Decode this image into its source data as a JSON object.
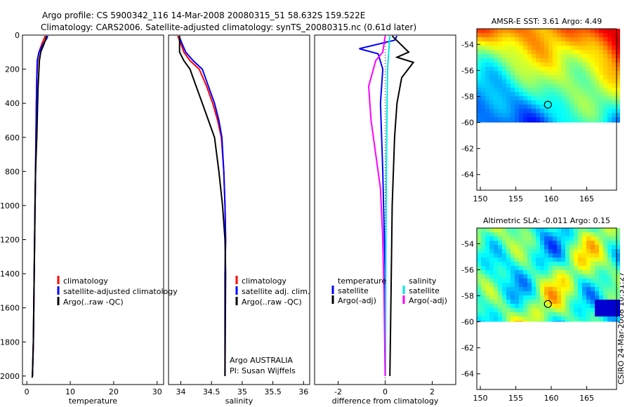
{
  "header": {
    "line1": "Argo profile: CS 5900342_116 14-Mar-2008 20080315_51 58.632S 159.522E",
    "line2": "Climatology: CARS2006. Satellite-adjusted climatology: synTS_20080315.nc (0.61d later)"
  },
  "footer": {
    "credit": "CSIRO 24-Mar-2008 10:31:27"
  },
  "colors": {
    "climatology": "#ff0000",
    "satellite": "#0000ff",
    "argo": "#000000",
    "sat_salinity": "#00e5e5",
    "argo_salinity": "#ff00ff"
  },
  "chart_data": [
    {
      "id": "temperature",
      "type": "line",
      "xlabel": "temperature",
      "ylabel": "",
      "xlim": [
        -1,
        31.5
      ],
      "ylim": [
        2050,
        0
      ],
      "xticks": [
        0,
        10,
        20,
        30
      ],
      "yticks": [
        0,
        200,
        400,
        600,
        800,
        1000,
        1200,
        1400,
        1600,
        1800,
        2000
      ],
      "legend": [
        "climatology",
        "satellite-adjusted climatology",
        "Argo(..raw -QC)"
      ],
      "series": [
        {
          "name": "climatology",
          "color": "#ff0000",
          "x": [
            4.2,
            4.0,
            3.5,
            2.8,
            2.5,
            2.3,
            2.2,
            2.1,
            2.0,
            1.9,
            1.7,
            1.5,
            1.3
          ],
          "y": [
            5,
            20,
            50,
            100,
            150,
            250,
            400,
            600,
            800,
            1000,
            1400,
            1800,
            2000
          ]
        },
        {
          "name": "satellite-adjusted climatology",
          "color": "#0000ff",
          "x": [
            4.8,
            4.6,
            3.8,
            2.8,
            2.4,
            2.3,
            2.2,
            2.1,
            2.0,
            1.9,
            1.7,
            1.5,
            1.3
          ],
          "y": [
            5,
            20,
            50,
            100,
            150,
            250,
            400,
            600,
            800,
            1000,
            1400,
            1800,
            2000
          ]
        },
        {
          "name": "Argo(..raw -QC)",
          "color": "#000000",
          "x": [
            4.5,
            4.4,
            4.0,
            3.2,
            2.9,
            2.8,
            2.6,
            2.5,
            2.3,
            2.0,
            1.9,
            1.7,
            1.5,
            1.3,
            1.2
          ],
          "y": [
            5,
            20,
            50,
            100,
            150,
            200,
            300,
            400,
            600,
            800,
            1000,
            1400,
            1800,
            2000,
            2010
          ]
        }
      ]
    },
    {
      "id": "salinity",
      "type": "line",
      "xlabel": "salinity",
      "ylabel": "",
      "xlim": [
        33.8,
        36.1
      ],
      "ylim": [
        2050,
        0
      ],
      "xticks": [
        34,
        34.5,
        35,
        35.5,
        36
      ],
      "xtick_labels": [
        "34",
        "34.5",
        "35",
        "35.5",
        "36"
      ],
      "yticks": [
        0,
        200,
        400,
        600,
        800,
        1000,
        1200,
        1400,
        1600,
        1800,
        2000
      ],
      "legend": [
        "climatology",
        "satellite adj. clim.",
        "Argo(..raw -QC)"
      ],
      "annotation": [
        "Argo AUSTRALIA",
        "PI: Susan Wijffels"
      ],
      "series": [
        {
          "name": "climatology",
          "color": "#ff0000",
          "x": [
            33.95,
            34.0,
            34.05,
            34.15,
            34.3,
            34.42,
            34.52,
            34.6,
            34.66,
            34.7,
            34.72,
            34.73,
            34.72,
            34.72,
            34.72
          ],
          "y": [
            5,
            50,
            100,
            150,
            200,
            300,
            400,
            500,
            600,
            800,
            1000,
            1200,
            1400,
            1800,
            2000
          ]
        },
        {
          "name": "satellite adj. clim.",
          "color": "#0000ff",
          "x": [
            33.97,
            34.02,
            34.08,
            34.2,
            34.35,
            34.45,
            34.55,
            34.62,
            34.67,
            34.7,
            34.72,
            34.73,
            34.72,
            34.72,
            34.72
          ],
          "y": [
            5,
            50,
            100,
            150,
            200,
            300,
            400,
            500,
            600,
            800,
            1000,
            1200,
            1400,
            1800,
            2000
          ]
        },
        {
          "name": "Argo(..raw -QC)",
          "color": "#000000",
          "x": [
            33.98,
            33.98,
            34.05,
            34.15,
            34.25,
            34.35,
            34.45,
            34.55,
            34.62,
            34.68,
            34.72,
            34.73,
            34.72
          ],
          "y": [
            5,
            100,
            150,
            200,
            300,
            400,
            500,
            600,
            800,
            1000,
            1200,
            1400,
            2000
          ]
        }
      ]
    },
    {
      "id": "difference",
      "type": "line",
      "xlabel": "difference from climatology",
      "ylabel": "",
      "xlim": [
        -3,
        3
      ],
      "ylim": [
        2050,
        0
      ],
      "xticks": [
        -2,
        0,
        2
      ],
      "yticks": [
        0,
        200,
        400,
        600,
        800,
        1000,
        1200,
        1400,
        1600,
        1800,
        2000
      ],
      "legend_left": [
        "temperature",
        "satellite",
        "Argo(-adj)"
      ],
      "legend_right": [
        "salinity",
        "satellite",
        "Argo(-adj)"
      ],
      "series": [
        {
          "name": "temperature satellite",
          "color": "#0000ff",
          "x": [
            0.5,
            0.4,
            -1.1,
            -0.3,
            -0.1,
            -0.2,
            -0.1,
            0,
            0
          ],
          "y": [
            5,
            30,
            80,
            110,
            200,
            400,
            800,
            1400,
            2000
          ]
        },
        {
          "name": "temperature Argo(-adj)",
          "color": "#000000",
          "x": [
            0.3,
            0.7,
            1.0,
            0.5,
            1.2,
            0.7,
            0.5,
            0.4,
            0.3,
            0.25,
            0.2
          ],
          "y": [
            5,
            60,
            100,
            130,
            160,
            250,
            400,
            600,
            1000,
            1500,
            2000
          ]
        },
        {
          "name": "salinity satellite",
          "color": "#00e5e5",
          "x": [
            0.2,
            0.15,
            0.1,
            0.08,
            0.05,
            0.03,
            0.02,
            0.01
          ],
          "y": [
            5,
            100,
            200,
            400,
            800,
            1200,
            1600,
            2000
          ]
        },
        {
          "name": "salinity Argo(-adj)",
          "color": "#ff00ff",
          "x": [
            0.0,
            -0.1,
            -0.4,
            -0.7,
            -0.6,
            -0.4,
            -0.2,
            -0.1,
            -0.05,
            0
          ],
          "y": [
            5,
            100,
            150,
            300,
            500,
            700,
            900,
            1200,
            1500,
            2000
          ]
        }
      ]
    },
    {
      "id": "sst_map",
      "type": "heatmap",
      "title": "AMSR-E SST: 3.61  Argo: 4.49",
      "xlim": [
        149.5,
        169.2
      ],
      "ylim": [
        -65.2,
        -52.8
      ],
      "xticks": [
        150,
        155,
        160,
        165
      ],
      "yticks": [
        -54,
        -56,
        -58,
        -60,
        -62,
        -64
      ],
      "ytick_labels": [
        "-54",
        "-56",
        "-58",
        "-60",
        "-62",
        "-64"
      ],
      "data_extent_lat": [
        -60,
        -52.8
      ],
      "marker": {
        "lon": 159.522,
        "lat": -58.632
      }
    },
    {
      "id": "sla_map",
      "type": "heatmap",
      "title": "Altimetric SLA: -0.011  Argo: 0.15",
      "xlim": [
        149.5,
        169.2
      ],
      "ylim": [
        -65.2,
        -52.8
      ],
      "xticks": [
        150,
        155,
        160,
        165
      ],
      "yticks": [
        -54,
        -56,
        -58,
        -60,
        -62,
        -64
      ],
      "ytick_labels": [
        "-54",
        "-56",
        "-58",
        "-60",
        "-62",
        "-64"
      ],
      "data_extent_lat": [
        -60,
        -52.8
      ],
      "marker": {
        "lon": 159.522,
        "lat": -58.632
      }
    }
  ]
}
